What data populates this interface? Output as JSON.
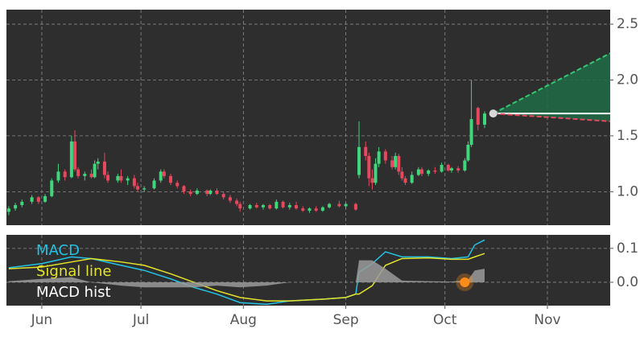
{
  "chart_data": [
    {
      "type": "candlestick",
      "x": [
        -10,
        -8,
        -6,
        -3,
        -1,
        1,
        3,
        5,
        7,
        9,
        10,
        11,
        13,
        15,
        16,
        17,
        19,
        20,
        23,
        24,
        26,
        28,
        29,
        31,
        34,
        36,
        37,
        39,
        41,
        43,
        45,
        47,
        50,
        51,
        53,
        55,
        57,
        59,
        60,
        63,
        65,
        67,
        69,
        71,
        73,
        75,
        77,
        79,
        81,
        83,
        85,
        87,
        90,
        92,
        95,
        96,
        98,
        99,
        100,
        101,
        102,
        104,
        106,
        107,
        108,
        109,
        110,
        112,
        114,
        115,
        117,
        119,
        121,
        123,
        124,
        126,
        128,
        129,
        130,
        132,
        134
      ],
      "open": [
        0.82,
        0.85,
        0.88,
        0.91,
        0.95,
        0.91,
        0.96,
        1.1,
        1.18,
        1.13,
        1.45,
        1.2,
        1.14,
        1.16,
        1.13,
        1.25,
        1.27,
        1.15,
        1.1,
        1.14,
        1.1,
        1.12,
        1.05,
        1.02,
        1.03,
        1.1,
        1.18,
        1.14,
        1.08,
        1.05,
        1.0,
        0.98,
        1.01,
        0.98,
        1.01,
        0.98,
        0.95,
        0.92,
        0.89,
        0.85,
        0.88,
        0.86,
        0.88,
        0.85,
        0.91,
        0.86,
        0.88,
        0.85,
        0.83,
        0.85,
        0.83,
        0.86,
        0.89,
        0.87,
        0.89,
        1.15,
        1.4,
        1.32,
        1.12,
        1.08,
        1.25,
        1.36,
        1.28,
        1.22,
        1.32,
        1.18,
        1.12,
        1.08,
        1.15,
        1.2,
        1.16,
        1.19,
        1.18,
        1.24,
        1.19,
        1.21,
        1.19,
        1.28,
        1.42,
        1.75,
        1.6
      ],
      "high": [
        0.87,
        0.9,
        0.93,
        0.97,
        0.96,
        0.98,
        1.12,
        1.25,
        1.2,
        1.5,
        1.55,
        1.22,
        1.18,
        1.2,
        1.28,
        1.3,
        1.35,
        1.18,
        1.16,
        1.2,
        1.14,
        1.15,
        1.08,
        1.05,
        1.12,
        1.2,
        1.2,
        1.16,
        1.1,
        1.06,
        1.02,
        1.03,
        1.02,
        1.02,
        1.03,
        1.0,
        0.97,
        0.94,
        0.91,
        0.89,
        0.9,
        0.89,
        0.89,
        0.93,
        0.92,
        0.9,
        0.91,
        0.87,
        0.86,
        0.87,
        0.87,
        0.9,
        0.92,
        0.9,
        0.9,
        1.63,
        1.45,
        1.35,
        1.2,
        1.3,
        1.4,
        1.38,
        1.32,
        1.35,
        1.34,
        1.22,
        1.14,
        1.18,
        1.22,
        1.22,
        1.2,
        1.22,
        1.26,
        1.25,
        1.22,
        1.23,
        1.3,
        1.45,
        2.0,
        1.76,
        1.72
      ],
      "low": [
        0.79,
        0.83,
        0.86,
        0.89,
        0.89,
        0.9,
        0.95,
        1.08,
        1.1,
        1.12,
        1.18,
        1.12,
        1.1,
        1.12,
        1.12,
        1.2,
        1.12,
        1.08,
        1.08,
        1.08,
        1.06,
        1.03,
        1.0,
        1.0,
        1.02,
        1.08,
        1.12,
        1.06,
        1.03,
        0.98,
        0.96,
        0.97,
        0.96,
        0.97,
        0.97,
        0.93,
        0.9,
        0.87,
        0.82,
        0.84,
        0.85,
        0.84,
        0.84,
        0.84,
        0.85,
        0.84,
        0.84,
        0.82,
        0.81,
        0.82,
        0.82,
        0.85,
        0.86,
        0.85,
        0.83,
        1.12,
        1.28,
        1.05,
        1.02,
        1.06,
        1.22,
        1.25,
        1.2,
        1.2,
        1.15,
        1.1,
        1.06,
        1.07,
        1.14,
        1.14,
        1.14,
        1.16,
        1.17,
        1.18,
        1.17,
        1.17,
        1.18,
        1.27,
        1.4,
        1.55,
        1.57
      ],
      "close": [
        0.85,
        0.88,
        0.91,
        0.95,
        0.91,
        0.96,
        1.1,
        1.18,
        1.13,
        1.45,
        1.2,
        1.14,
        1.16,
        1.13,
        1.25,
        1.27,
        1.15,
        1.1,
        1.14,
        1.1,
        1.12,
        1.05,
        1.02,
        1.03,
        1.1,
        1.18,
        1.14,
        1.08,
        1.05,
        1.0,
        0.98,
        1.01,
        0.98,
        1.01,
        0.98,
        0.95,
        0.92,
        0.89,
        0.85,
        0.88,
        0.86,
        0.88,
        0.85,
        0.91,
        0.86,
        0.88,
        0.85,
        0.83,
        0.85,
        0.83,
        0.86,
        0.89,
        0.87,
        0.89,
        0.84,
        1.4,
        1.32,
        1.12,
        1.08,
        1.25,
        1.36,
        1.28,
        1.22,
        1.32,
        1.18,
        1.12,
        1.08,
        1.15,
        1.2,
        1.16,
        1.19,
        1.18,
        1.24,
        1.19,
        1.21,
        1.19,
        1.28,
        1.42,
        1.65,
        1.6,
        1.7
      ],
      "up_color": "#3fd67c",
      "down_color": "#e8485e",
      "forecast": {
        "x": [
          136.6,
          172
        ],
        "mid": [
          1.7,
          1.7
        ],
        "upper": [
          1.7,
          2.24
        ],
        "lower": [
          1.7,
          1.63
        ],
        "upper_color": "#2ecc71",
        "lower_color": "#e8485e",
        "mid_color": "#ffffff",
        "fill_color": "#1e6b47"
      },
      "xlim": [
        -10.7,
        172
      ],
      "ylim": [
        0.7,
        2.63
      ],
      "yticks": [
        {
          "value": 1,
          "label": "1.0"
        },
        1.5,
        {
          "value": 2,
          "label": "2.0"
        },
        2.5
      ],
      "grid": true
    },
    {
      "type": "macd",
      "x": [
        -10,
        0,
        9,
        15,
        24,
        31,
        39,
        46,
        53,
        60,
        68,
        75,
        85,
        92,
        95,
        96,
        100,
        104,
        109,
        117,
        124,
        129,
        131,
        134
      ],
      "series": [
        {
          "name": "MACD",
          "color": "#22c3e6",
          "kind": "line",
          "values": [
            0.043,
            0.055,
            0.075,
            0.07,
            0.05,
            0.035,
            0.01,
            -0.015,
            -0.035,
            -0.06,
            -0.065,
            -0.055,
            -0.05,
            -0.045,
            -0.035,
            0.03,
            0.055,
            0.09,
            0.075,
            0.075,
            0.07,
            0.075,
            0.11,
            0.125
          ]
        },
        {
          "name": "Signal line",
          "color": "#e3e32a",
          "kind": "line",
          "values": [
            0.04,
            0.045,
            0.06,
            0.07,
            0.06,
            0.05,
            0.025,
            0.0,
            -0.025,
            -0.045,
            -0.055,
            -0.055,
            -0.05,
            -0.045,
            -0.035,
            -0.035,
            -0.01,
            0.05,
            0.07,
            0.072,
            0.068,
            0.068,
            0.075,
            0.085
          ]
        },
        {
          "name": "MACD hist",
          "color": "#9a9a9a",
          "kind": "area",
          "values": [
            0.003,
            0.01,
            0.015,
            0,
            -0.01,
            -0.015,
            -0.015,
            -0.015,
            -0.01,
            -0.015,
            -0.01,
            0,
            0,
            0,
            0,
            0.065,
            0.065,
            0.04,
            0.005,
            0.003,
            0.002,
            0.007,
            0.035,
            0.04
          ]
        }
      ],
      "marker": {
        "x": 128,
        "y": 0,
        "color": "#ff8c1a"
      },
      "xlim": [
        -10.7,
        172
      ],
      "ylim": [
        -0.069,
        0.14
      ],
      "yticks": [
        {
          "value": 0,
          "label": "0.0"
        },
        0.1
      ],
      "xticks": [
        {
          "value": 0,
          "label": "Jun"
        },
        {
          "value": 30,
          "label": "Jul"
        },
        {
          "value": 61,
          "label": "Aug"
        },
        {
          "value": 92,
          "label": "Sep"
        },
        {
          "value": 122,
          "label": "Oct"
        },
        {
          "value": 153,
          "label": "Nov"
        }
      ],
      "grid": true
    }
  ]
}
